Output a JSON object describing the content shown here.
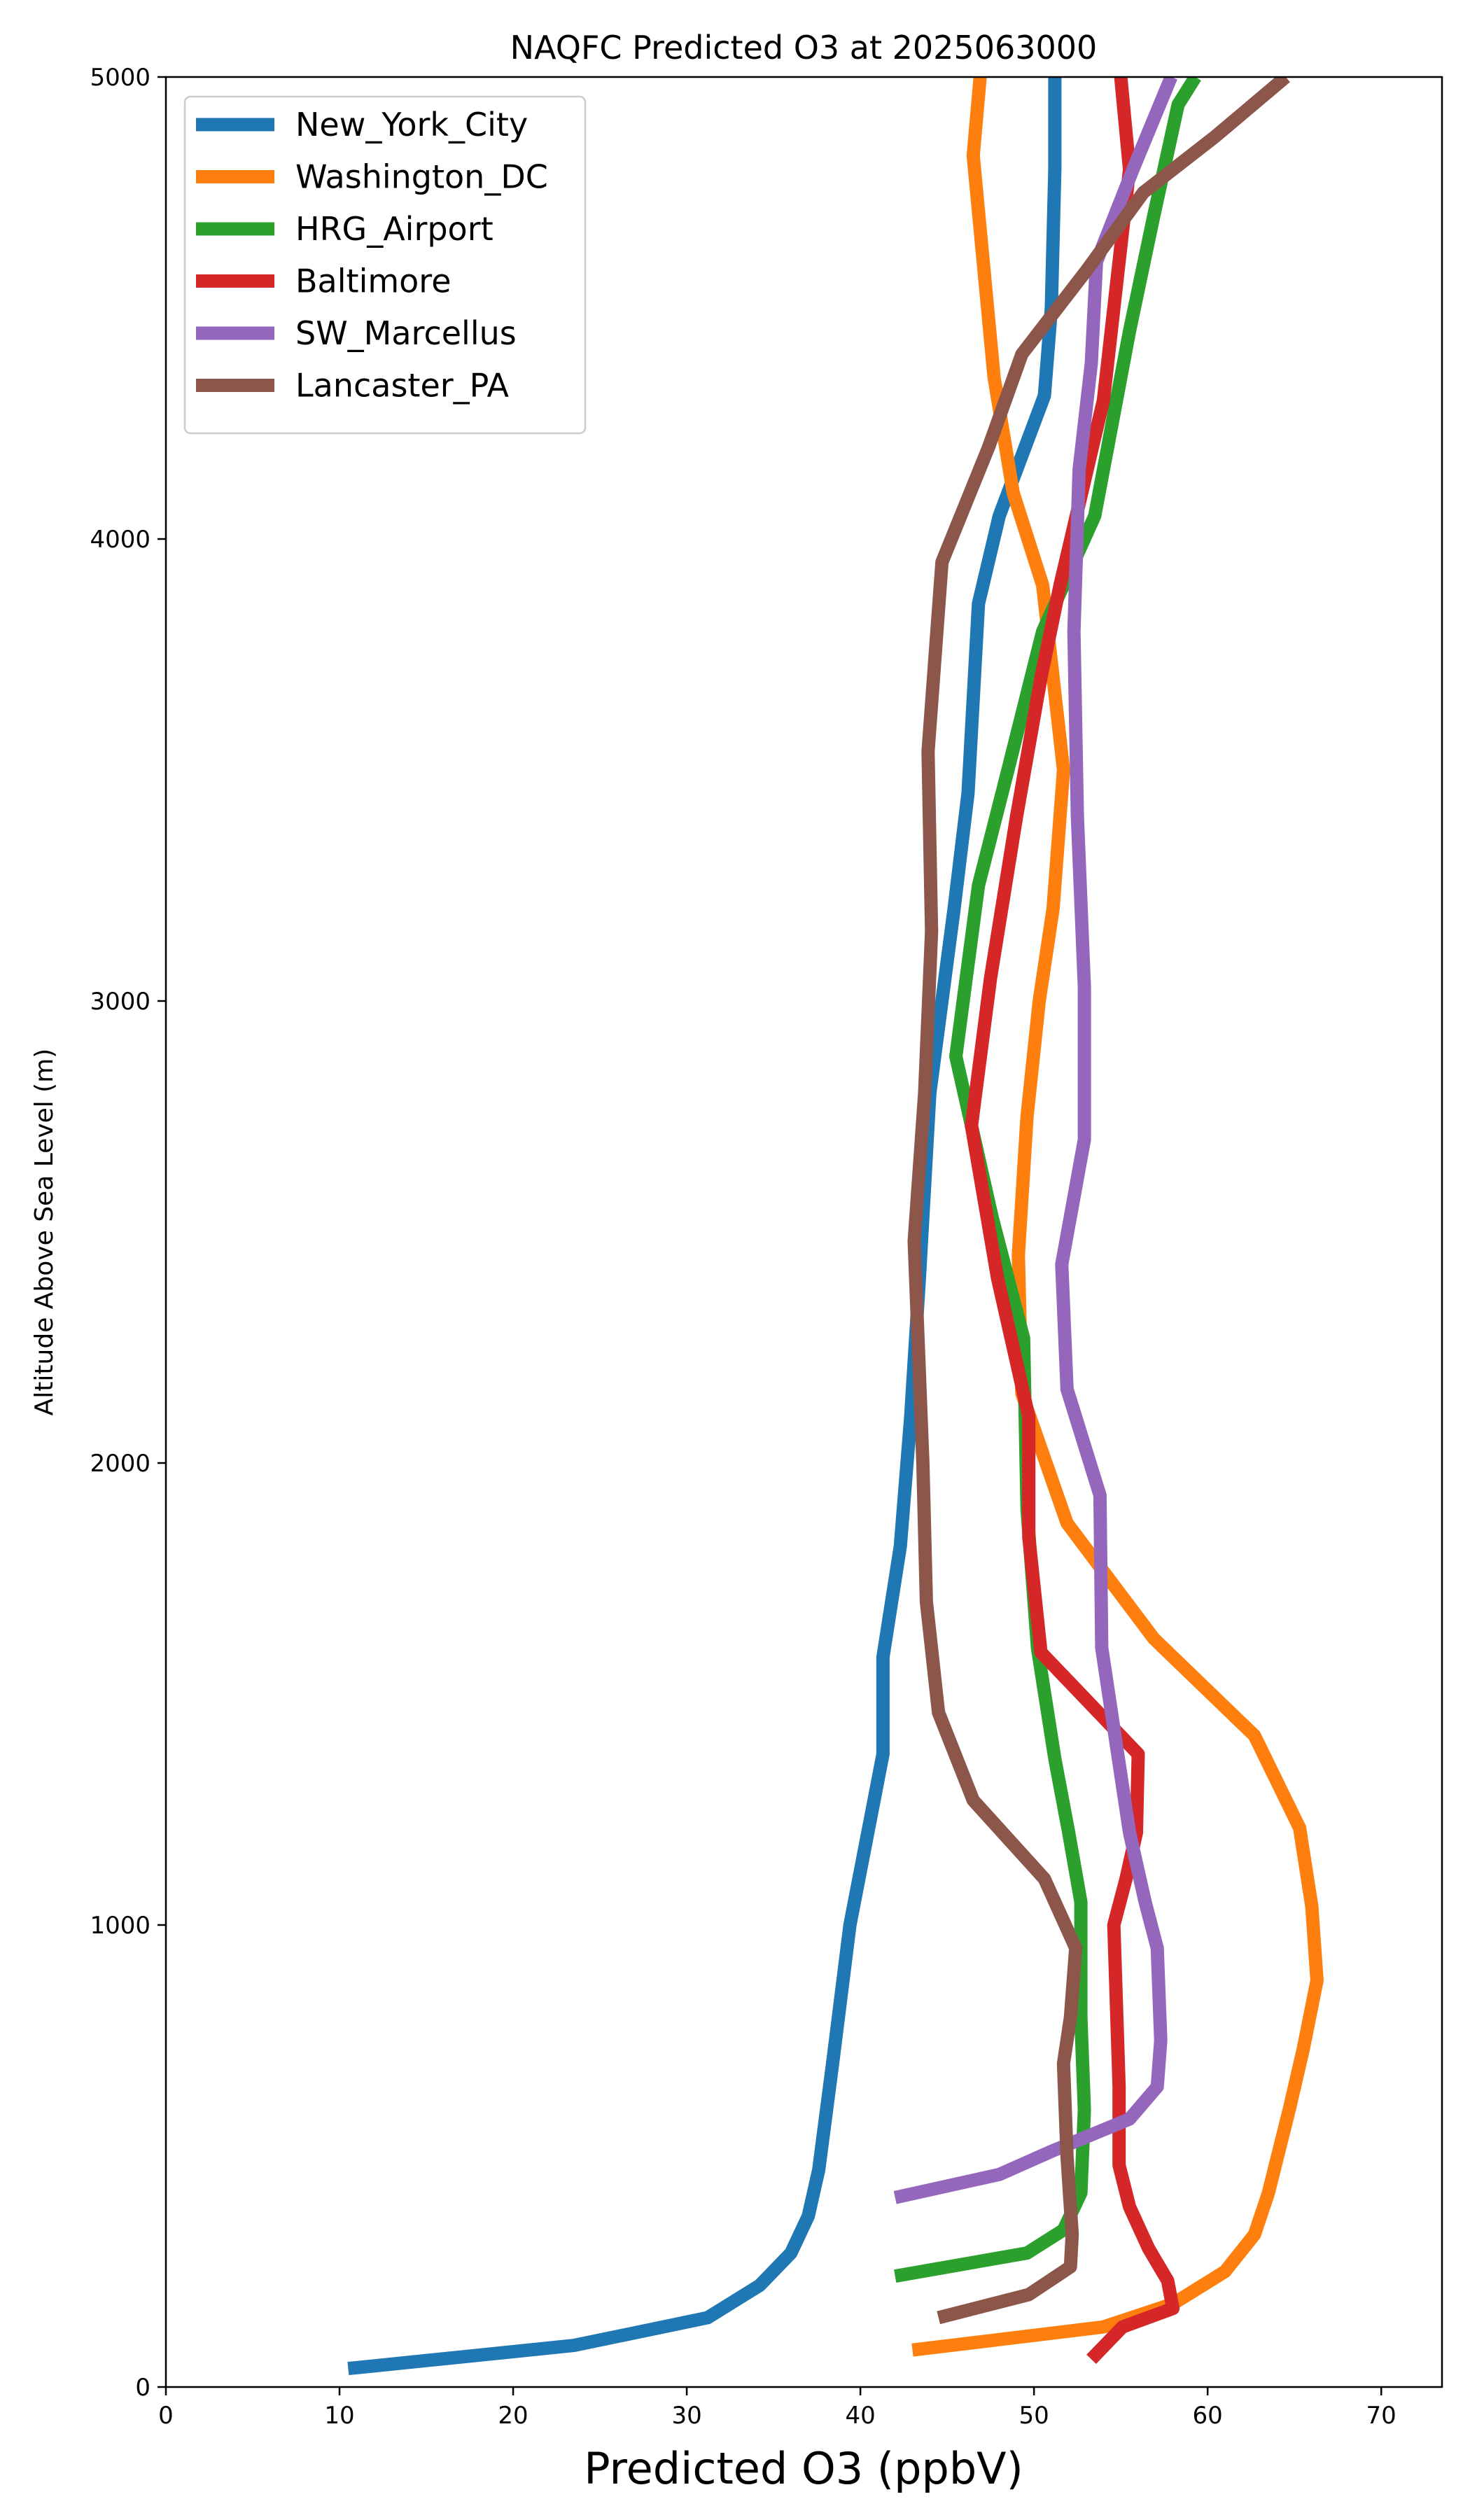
{
  "chart_data": {
    "type": "line",
    "title": "NAQFC Predicted O3 at 2025063000",
    "xlabel": "Predicted O3 (ppbV)",
    "ylabel": "Altitude Above Sea Level (m)",
    "xlim": [
      0,
      73.5
    ],
    "ylim": [
      0,
      5000
    ],
    "xticks": [
      0,
      10,
      20,
      30,
      40,
      50,
      60,
      70
    ],
    "yticks": [
      0,
      1000,
      2000,
      3000,
      4000,
      5000
    ],
    "grid": false,
    "legend": "upper left",
    "series": [
      {
        "name": "New_York_City",
        "color": "#1f77b4",
        "points": [
          [
            10.5,
            40
          ],
          [
            23.5,
            90
          ],
          [
            31.2,
            150
          ],
          [
            34.2,
            220
          ],
          [
            36.0,
            290
          ],
          [
            37.0,
            370
          ],
          [
            37.6,
            470
          ],
          [
            38.4,
            700
          ],
          [
            39.4,
            1000
          ],
          [
            41.3,
            1370
          ],
          [
            41.3,
            1580
          ],
          [
            42.3,
            1820
          ],
          [
            42.9,
            2100
          ],
          [
            43.4,
            2400
          ],
          [
            44.0,
            2800
          ],
          [
            45.4,
            3200
          ],
          [
            46.2,
            3450
          ],
          [
            46.8,
            3860
          ],
          [
            48.0,
            4050
          ],
          [
            50.6,
            4310
          ],
          [
            51.0,
            4500
          ],
          [
            51.2,
            4800
          ],
          [
            51.2,
            5000
          ]
        ]
      },
      {
        "name": "Washington_DC",
        "color": "#ff7f0e",
        "points": [
          [
            43.0,
            80
          ],
          [
            54.0,
            130
          ],
          [
            58.0,
            180
          ],
          [
            61.0,
            250
          ],
          [
            62.7,
            330
          ],
          [
            63.5,
            420
          ],
          [
            64.7,
            600
          ],
          [
            65.5,
            730
          ],
          [
            66.3,
            880
          ],
          [
            66.0,
            1040
          ],
          [
            65.3,
            1210
          ],
          [
            62.7,
            1410
          ],
          [
            56.9,
            1620
          ],
          [
            51.9,
            1870
          ],
          [
            49.3,
            2150
          ],
          [
            49.1,
            2450
          ],
          [
            49.6,
            2750
          ],
          [
            50.3,
            3000
          ],
          [
            51.1,
            3200
          ],
          [
            51.7,
            3500
          ],
          [
            50.5,
            3900
          ],
          [
            48.8,
            4100
          ],
          [
            47.7,
            4350
          ],
          [
            46.5,
            4830
          ],
          [
            46.9,
            5000
          ]
        ]
      },
      {
        "name": "HRG_Airport",
        "color": "#2ca02c",
        "points": [
          [
            42.0,
            240
          ],
          [
            49.6,
            290
          ],
          [
            51.7,
            340
          ],
          [
            52.7,
            420
          ],
          [
            52.9,
            600
          ],
          [
            52.7,
            800
          ],
          [
            52.7,
            1050
          ],
          [
            52.0,
            1200
          ],
          [
            51.2,
            1360
          ],
          [
            50.2,
            1600
          ],
          [
            49.6,
            1900
          ],
          [
            49.4,
            2270
          ],
          [
            47.6,
            2530
          ],
          [
            45.5,
            2880
          ],
          [
            46.8,
            3250
          ],
          [
            48.5,
            3500
          ],
          [
            50.5,
            3800
          ],
          [
            53.5,
            4050
          ],
          [
            55.5,
            4450
          ],
          [
            56.9,
            4700
          ],
          [
            58.3,
            4940
          ],
          [
            59.3,
            5000
          ]
        ]
      },
      {
        "name": "Baltimore",
        "color": "#d62728",
        "points": [
          [
            53.3,
            60
          ],
          [
            55.1,
            130
          ],
          [
            58.0,
            170
          ],
          [
            57.7,
            230
          ],
          [
            56.6,
            300
          ],
          [
            55.5,
            390
          ],
          [
            54.9,
            480
          ],
          [
            54.9,
            650
          ],
          [
            54.6,
            1000
          ],
          [
            55.3,
            1100
          ],
          [
            55.9,
            1200
          ],
          [
            56.0,
            1370
          ],
          [
            50.4,
            1590
          ],
          [
            49.7,
            1840
          ],
          [
            49.7,
            2100
          ],
          [
            47.9,
            2400
          ],
          [
            46.4,
            2730
          ],
          [
            47.5,
            3050
          ],
          [
            49.0,
            3400
          ],
          [
            50.4,
            3700
          ],
          [
            51.5,
            3900
          ],
          [
            54.0,
            4300
          ],
          [
            55.5,
            4800
          ],
          [
            55.0,
            5000
          ]
        ]
      },
      {
        "name": "SW_Marcellus",
        "color": "#9467bd",
        "points": [
          [
            42.0,
            410
          ],
          [
            48.0,
            460
          ],
          [
            51.0,
            510
          ],
          [
            55.5,
            580
          ],
          [
            57.1,
            650
          ],
          [
            57.3,
            750
          ],
          [
            57.1,
            950
          ],
          [
            56.4,
            1050
          ],
          [
            55.5,
            1200
          ],
          [
            54.9,
            1350
          ],
          [
            53.9,
            1600
          ],
          [
            53.8,
            1930
          ],
          [
            51.9,
            2160
          ],
          [
            51.6,
            2430
          ],
          [
            52.9,
            2700
          ],
          [
            52.9,
            3030
          ],
          [
            52.5,
            3400
          ],
          [
            52.3,
            3800
          ],
          [
            52.6,
            4150
          ],
          [
            53.3,
            4380
          ],
          [
            53.6,
            4600
          ],
          [
            55.7,
            4800
          ],
          [
            57.9,
            5000
          ]
        ]
      },
      {
        "name": "Lancaster_PA",
        "color": "#8c564b",
        "points": [
          [
            44.5,
            150
          ],
          [
            49.7,
            200
          ],
          [
            52.1,
            260
          ],
          [
            52.2,
            330
          ],
          [
            51.9,
            500
          ],
          [
            51.7,
            700
          ],
          [
            52.1,
            800
          ],
          [
            52.4,
            950
          ],
          [
            50.6,
            1100
          ],
          [
            46.5,
            1270
          ],
          [
            44.5,
            1460
          ],
          [
            43.8,
            1700
          ],
          [
            43.6,
            2000
          ],
          [
            43.1,
            2480
          ],
          [
            43.7,
            2800
          ],
          [
            44.1,
            3150
          ],
          [
            43.9,
            3540
          ],
          [
            44.7,
            3950
          ],
          [
            47.4,
            4200
          ],
          [
            49.3,
            4400
          ],
          [
            53.0,
            4580
          ],
          [
            56.3,
            4750
          ],
          [
            60.4,
            4870
          ],
          [
            64.5,
            5000
          ]
        ]
      }
    ]
  }
}
